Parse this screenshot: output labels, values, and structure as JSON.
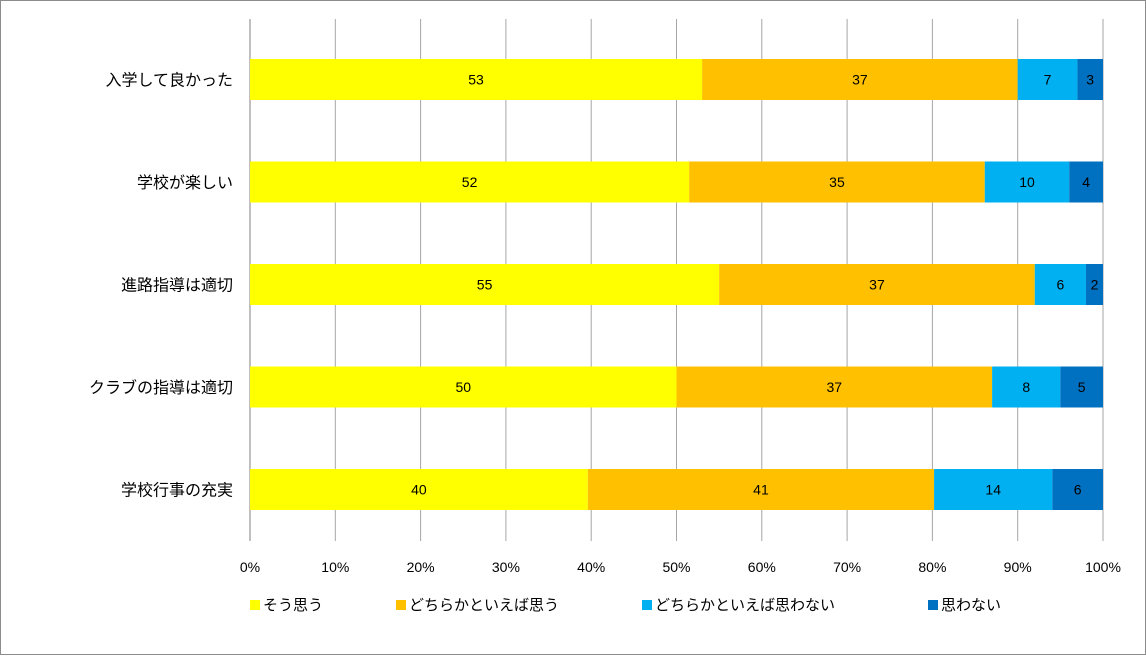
{
  "chart_data": {
    "type": "bar",
    "orientation": "horizontal",
    "stacked": "percent",
    "categories": [
      "入学して良かった",
      "学校が楽しい",
      "進路指導は適切",
      "クラブの指導は適切",
      "学校行事の充実"
    ],
    "series": [
      {
        "name": "そう思う",
        "color": "#FFFF00",
        "values": [
          53,
          52,
          55,
          50,
          40
        ]
      },
      {
        "name": "どちらかといえば思う",
        "color": "#FFC000",
        "values": [
          37,
          35,
          37,
          37,
          41
        ]
      },
      {
        "name": "どちらかといえば思わない",
        "color": "#00B0F0",
        "values": [
          7,
          10,
          6,
          8,
          14
        ]
      },
      {
        "name": "思わない",
        "color": "#0070C0",
        "values": [
          3,
          4,
          2,
          5,
          6
        ]
      }
    ],
    "xlim": [
      0,
      100
    ],
    "ticks": [
      "0%",
      "10%",
      "20%",
      "30%",
      "40%",
      "50%",
      "60%",
      "70%",
      "80%",
      "90%",
      "100%"
    ],
    "grid": true,
    "legend_position": "bottom",
    "title": "",
    "xlabel": "",
    "ylabel": ""
  }
}
